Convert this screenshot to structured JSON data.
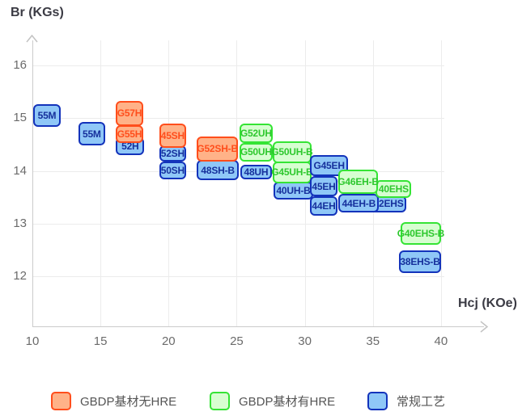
{
  "titles": {
    "y_axis": "Br (KGs)",
    "x_axis": "Hcj (KOe)"
  },
  "colors": {
    "gbdp_no_hre": {
      "fill": "#FFB288",
      "border": "#FF4E1C",
      "text": "#FF4E1C"
    },
    "gbdp_hre": {
      "fill": "#D7FED1",
      "border": "#35E435",
      "text": "#2EC82E"
    },
    "conventional": {
      "fill": "#8FC7F7",
      "border": "#1333BB",
      "text": "#16309C"
    },
    "grid": "#ececec",
    "axis": "#cbcbcb"
  },
  "legend": [
    {
      "key": "gbdp_no_hre",
      "label": "GBDP基材无HRE"
    },
    {
      "key": "gbdp_hre",
      "label": "GBDP基材有HRE"
    },
    {
      "key": "conventional",
      "label": "常规工艺"
    }
  ],
  "chart_data": {
    "type": "scatter",
    "title": "",
    "xlabel": "Hcj (KOe)",
    "ylabel": "Br (KGs)",
    "x_ticks": [
      10,
      15,
      20,
      25,
      30,
      35,
      40
    ],
    "y_ticks": [
      16,
      15,
      14,
      13,
      12
    ],
    "xlim": [
      10,
      43.2
    ],
    "ylim": [
      11.2,
      16.55
    ],
    "grid": true,
    "legend_position": "bottom",
    "series_names": {
      "gbdp_no_hre": "GBDP基材无HRE",
      "gbdp_hre": "GBDP基材有HRE",
      "conventional": "常规工艺"
    },
    "points": [
      {
        "label": "55M",
        "series": "conventional",
        "hcj": [
          10.06,
          12.08
        ],
        "br": [
          14.84,
          15.26
        ]
      },
      {
        "label": "55M",
        "series": "conventional",
        "hcj": [
          13.37,
          15.35
        ],
        "br": [
          14.48,
          14.92
        ]
      },
      {
        "label": "52H",
        "series": "conventional",
        "hcj": [
          16.14,
          18.22
        ],
        "br": [
          14.3,
          14.64
        ]
      },
      {
        "label": "G57H",
        "series": "gbdp_no_hre",
        "hcj": [
          16.1,
          18.16
        ],
        "br": [
          14.85,
          15.33
        ]
      },
      {
        "label": "G55H",
        "series": "gbdp_no_hre",
        "hcj": [
          16.1,
          18.16
        ],
        "br": [
          14.53,
          14.87
        ]
      },
      {
        "label": "52SH",
        "series": "conventional",
        "hcj": [
          19.31,
          21.29
        ],
        "br": [
          14.18,
          14.49
        ]
      },
      {
        "label": "50SH",
        "series": "conventional",
        "hcj": [
          19.31,
          21.29
        ],
        "br": [
          13.84,
          14.18
        ]
      },
      {
        "label": "45SH",
        "series": "gbdp_no_hre",
        "hcj": [
          19.31,
          21.29
        ],
        "br": [
          14.43,
          14.9
        ]
      },
      {
        "label": "48SH-B",
        "series": "conventional",
        "hcj": [
          22.08,
          25.15
        ],
        "br": [
          13.82,
          14.21
        ]
      },
      {
        "label": "G52SH-B",
        "series": "gbdp_no_hre",
        "hcj": [
          22.08,
          25.09
        ],
        "br": [
          14.18,
          14.65
        ]
      },
      {
        "label": "48UH",
        "series": "conventional",
        "hcj": [
          25.25,
          27.6
        ],
        "br": [
          13.84,
          14.12
        ]
      },
      {
        "label": "G52UH",
        "series": "gbdp_hre",
        "hcj": [
          25.21,
          27.63
        ],
        "br": [
          14.53,
          14.9
        ]
      },
      {
        "label": "G50UH",
        "series": "gbdp_hre",
        "hcj": [
          25.21,
          27.63
        ],
        "br": [
          14.18,
          14.53
        ]
      },
      {
        "label": "40UH-B",
        "series": "conventional",
        "hcj": [
          27.73,
          30.6
        ],
        "br": [
          13.46,
          13.79
        ]
      },
      {
        "label": "G50UH-B",
        "series": "gbdp_hre",
        "hcj": [
          27.63,
          30.5
        ],
        "br": [
          14.15,
          14.56
        ]
      },
      {
        "label": "G45UH-B",
        "series": "gbdp_hre",
        "hcj": [
          27.63,
          30.5
        ],
        "br": [
          13.77,
          14.18
        ]
      },
      {
        "label": "G45EH",
        "series": "conventional",
        "hcj": [
          30.4,
          33.17
        ],
        "br": [
          13.9,
          14.3
        ]
      },
      {
        "label": "45EH",
        "series": "conventional",
        "hcj": [
          30.4,
          32.38
        ],
        "br": [
          13.51,
          13.9
        ]
      },
      {
        "label": "44EH",
        "series": "conventional",
        "hcj": [
          30.4,
          32.38
        ],
        "br": [
          13.15,
          13.51
        ]
      },
      {
        "label": "42EHS",
        "series": "conventional",
        "hcj": [
          34.86,
          37.43
        ],
        "br": [
          13.21,
          13.54
        ]
      },
      {
        "label": "44EH-B",
        "series": "conventional",
        "hcj": [
          32.48,
          35.45
        ],
        "br": [
          13.21,
          13.56
        ]
      },
      {
        "label": "40EHS",
        "series": "gbdp_hre",
        "hcj": [
          35.22,
          37.83
        ],
        "br": [
          13.49,
          13.82
        ]
      },
      {
        "label": "G46EH-B",
        "series": "gbdp_hre",
        "hcj": [
          32.48,
          35.36
        ],
        "br": [
          13.56,
          14.02
        ]
      },
      {
        "label": "G40EHS-B",
        "series": "gbdp_hre",
        "hcj": [
          37.03,
          40.0
        ],
        "br": [
          12.59,
          13.03
        ]
      },
      {
        "label": "38EHS-B",
        "series": "conventional",
        "hcj": [
          36.93,
          40.0
        ],
        "br": [
          12.06,
          12.49
        ]
      }
    ]
  }
}
